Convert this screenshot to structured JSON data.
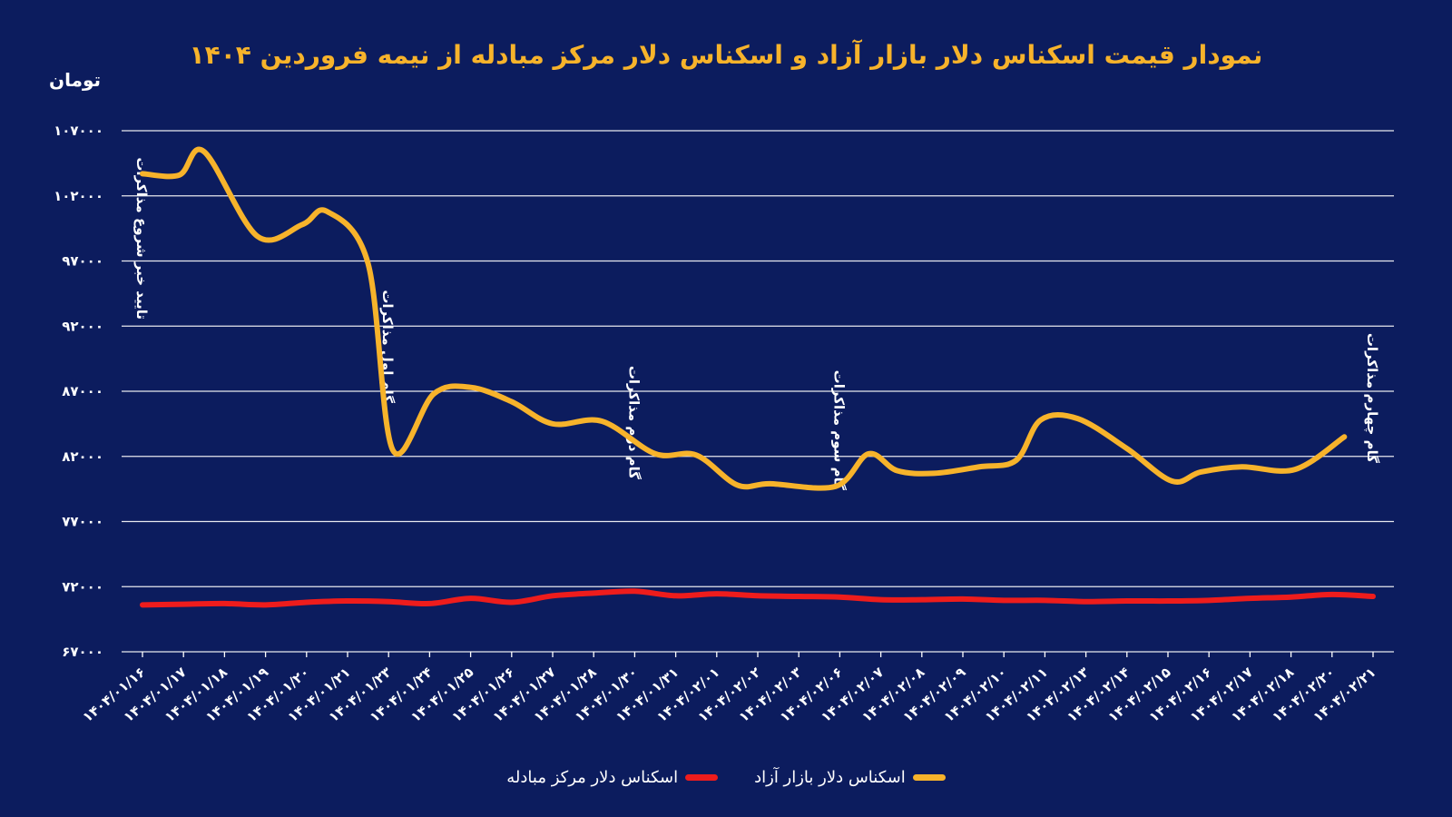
{
  "title": "نمودار قیمت اسکناس دلار بازار آزاد و اسکناس دلار مرکز مبادله از نیمه فروردین ۱۴۰۴",
  "unit": "تومان",
  "colors": {
    "background": "#0c1c5e",
    "free_market": "#f7b32b",
    "exchange_center": "#ee1c1c",
    "grid": "#ffffff"
  },
  "legend": {
    "free_market": "اسکناس دلار بازار آزاد",
    "exchange_center": "اسکناس دلار مرکز مبادله"
  },
  "chart_data": {
    "type": "line",
    "ylim": [
      67000,
      107000
    ],
    "yticks": [
      67000,
      72000,
      77000,
      82000,
      87000,
      92000,
      97000,
      102000,
      107000
    ],
    "ytick_labels": [
      "۶۷۰۰۰",
      "۷۲۰۰۰",
      "۷۷۰۰۰",
      "۸۲۰۰۰",
      "۸۷۰۰۰",
      "۹۲۰۰۰",
      "۹۷۰۰۰",
      "۱۰۲۰۰۰",
      "۱۰۷۰۰۰"
    ],
    "ylabel": "تومان",
    "grid": true,
    "legend_position": "bottom",
    "categories": [
      "۱۴۰۴/۰۱/۱۶",
      "۱۴۰۴/۰۱/۱۷",
      "۱۴۰۴/۰۱/۱۸",
      "۱۴۰۴/۰۱/۱۹",
      "۱۴۰۴/۰۱/۲۰",
      "۱۴۰۴/۰۱/۲۱",
      "۱۴۰۴/۰۱/۲۳",
      "۱۴۰۴/۰۱/۲۴",
      "۱۴۰۴/۰۱/۲۵",
      "۱۴۰۴/۰۱/۲۶",
      "۱۴۰۴/۰۱/۲۷",
      "۱۴۰۴/۰۱/۲۸",
      "۱۴۰۴/۰۱/۳۰",
      "۱۴۰۴/۰۱/۳۱",
      "۱۴۰۴/۰۲/۰۱",
      "۱۴۰۴/۰۲/۰۲",
      "۱۴۰۴/۰۲/۰۳",
      "۱۴۰۴/۰۲/۰۶",
      "۱۴۰۴/۰۲/۰۷",
      "۱۴۰۴/۰۲/۰۸",
      "۱۴۰۴/۰۲/۰۹",
      "۱۴۰۴/۰۲/۱۰",
      "۱۴۰۴/۰۲/۱۱",
      "۱۴۰۴/۰۲/۱۳",
      "۱۴۰۴/۰۲/۱۴",
      "۱۴۰۴/۰۲/۱۵",
      "۱۴۰۴/۰۲/۱۶",
      "۱۴۰۴/۰۲/۱۷",
      "۱۴۰۴/۰۲/۱۸",
      "۱۴۰۴/۰۲/۲۰",
      "۱۴۰۴/۰۲/۲۱"
    ],
    "series": [
      {
        "name": "اسکناس دلار بازار آزاد",
        "color": "#f7b32b",
        "values": [
          103700,
          103600,
          105400,
          98900,
          99800,
          100800,
          96800,
          82500,
          86800,
          87300,
          86200,
          84500,
          84700,
          82200,
          82100,
          79800,
          79900,
          79700,
          82200,
          80900,
          80700,
          81200,
          81700,
          84800,
          84900,
          82600,
          80100,
          80800,
          81200,
          81000,
          83500
        ],
        "x_positions": [
          0,
          0.9,
          1.5,
          2.8,
          3.9,
          4.5,
          5.5,
          6.1,
          7.1,
          8.0,
          9.0,
          10.0,
          11.2,
          12.5,
          13.5,
          14.5,
          15.3,
          16.9,
          17.7,
          18.4,
          19.3,
          20.4,
          21.3,
          21.9,
          22.8,
          24.0,
          25.1,
          25.8,
          26.8,
          28.1,
          29.3
        ]
      },
      {
        "name": "اسکناس دلار مرکز مبادله",
        "color": "#ee1c1c",
        "values": [
          70600,
          70650,
          70700,
          70600,
          70800,
          70900,
          70850,
          70700,
          71100,
          70800,
          71300,
          71500,
          71650,
          71300,
          71450,
          71300,
          71250,
          71200,
          71000,
          71000,
          71050,
          70950,
          70950,
          70850,
          70900,
          70900,
          70950,
          71100,
          71200,
          71400,
          71250
        ],
        "x_positions": [
          0,
          1,
          2,
          3,
          4,
          5,
          6,
          7,
          8,
          9,
          10,
          11,
          12,
          13,
          14,
          15,
          16,
          17,
          18,
          19,
          20,
          21,
          22,
          23,
          24,
          25,
          26,
          27,
          28,
          29,
          30
        ]
      }
    ],
    "annotations": [
      {
        "text": "تایید خبر شروع مذاکرات",
        "at_index": 0
      },
      {
        "text": "گام اول مذاکرات",
        "at_index": 6
      },
      {
        "text": "گام دوم مذاکرات",
        "at_index": 12
      },
      {
        "text": "گام سوم مذاکرات",
        "at_index": 17
      },
      {
        "text": "گام چهارم مذاکرات",
        "at_index": 30
      }
    ]
  }
}
